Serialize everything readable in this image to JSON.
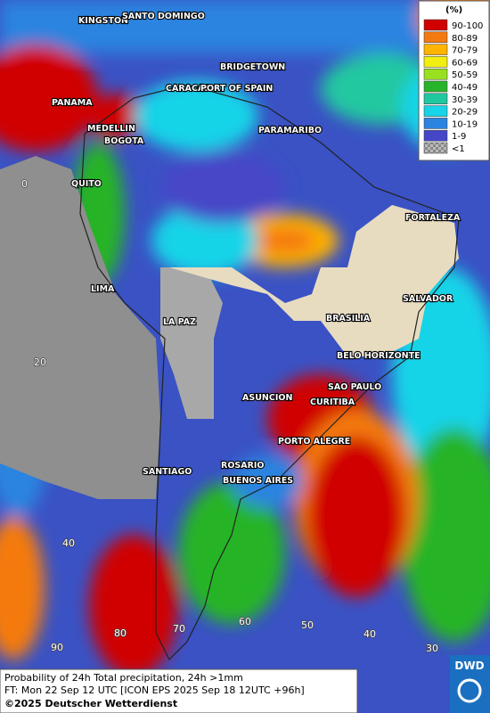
{
  "map": {
    "legend": {
      "title": "(%)",
      "items": [
        {
          "label": "90-100",
          "color": "#d00000"
        },
        {
          "label": "80-89",
          "color": "#f47a10"
        },
        {
          "label": "70-79",
          "color": "#ffb400"
        },
        {
          "label": "60-69",
          "color": "#f2ee10"
        },
        {
          "label": "50-59",
          "color": "#98e020"
        },
        {
          "label": "40-49",
          "color": "#28b428"
        },
        {
          "label": "30-39",
          "color": "#20c8a0"
        },
        {
          "label": "20-29",
          "color": "#18d4e8"
        },
        {
          "label": "10-19",
          "color": "#2a84e0"
        },
        {
          "label": "1-9",
          "color": "#4646c8"
        },
        {
          "label": "<1",
          "color": "checker"
        }
      ]
    },
    "cities": [
      "KINGSTON",
      "SANTO DOMINGO",
      "BRIDGETOWN",
      "CARACAS",
      "PORT OF SPAIN",
      "PANAMA",
      "MEDELLIN",
      "BOGOTA",
      "PARAMARIBO",
      "QUITO",
      "FORTALEZA",
      "LIMA",
      "SALVADOR",
      "BRASILIA",
      "LA PAZ",
      "BELO HORIZONTE",
      "SAO PAULO",
      "ASUNCION",
      "CURITIBA",
      "PORTO ALEGRE",
      "SANTIAGO",
      "ROSARIO",
      "BUENOS AIRES"
    ],
    "lat_labels": [
      "0",
      "20",
      "40"
    ],
    "lon_labels": [
      "90",
      "80",
      "70",
      "60",
      "50",
      "40",
      "30"
    ]
  },
  "footer": {
    "line1": "Probability of 24h Total precipitation, 24h >1mm",
    "line2": "FT: Mon 22 Sep 12 UTC [ICON EPS 2025 Sep 18 12UTC +96h]",
    "line3": "©2025 Deutscher Wetterdienst"
  },
  "logo": "DWD"
}
